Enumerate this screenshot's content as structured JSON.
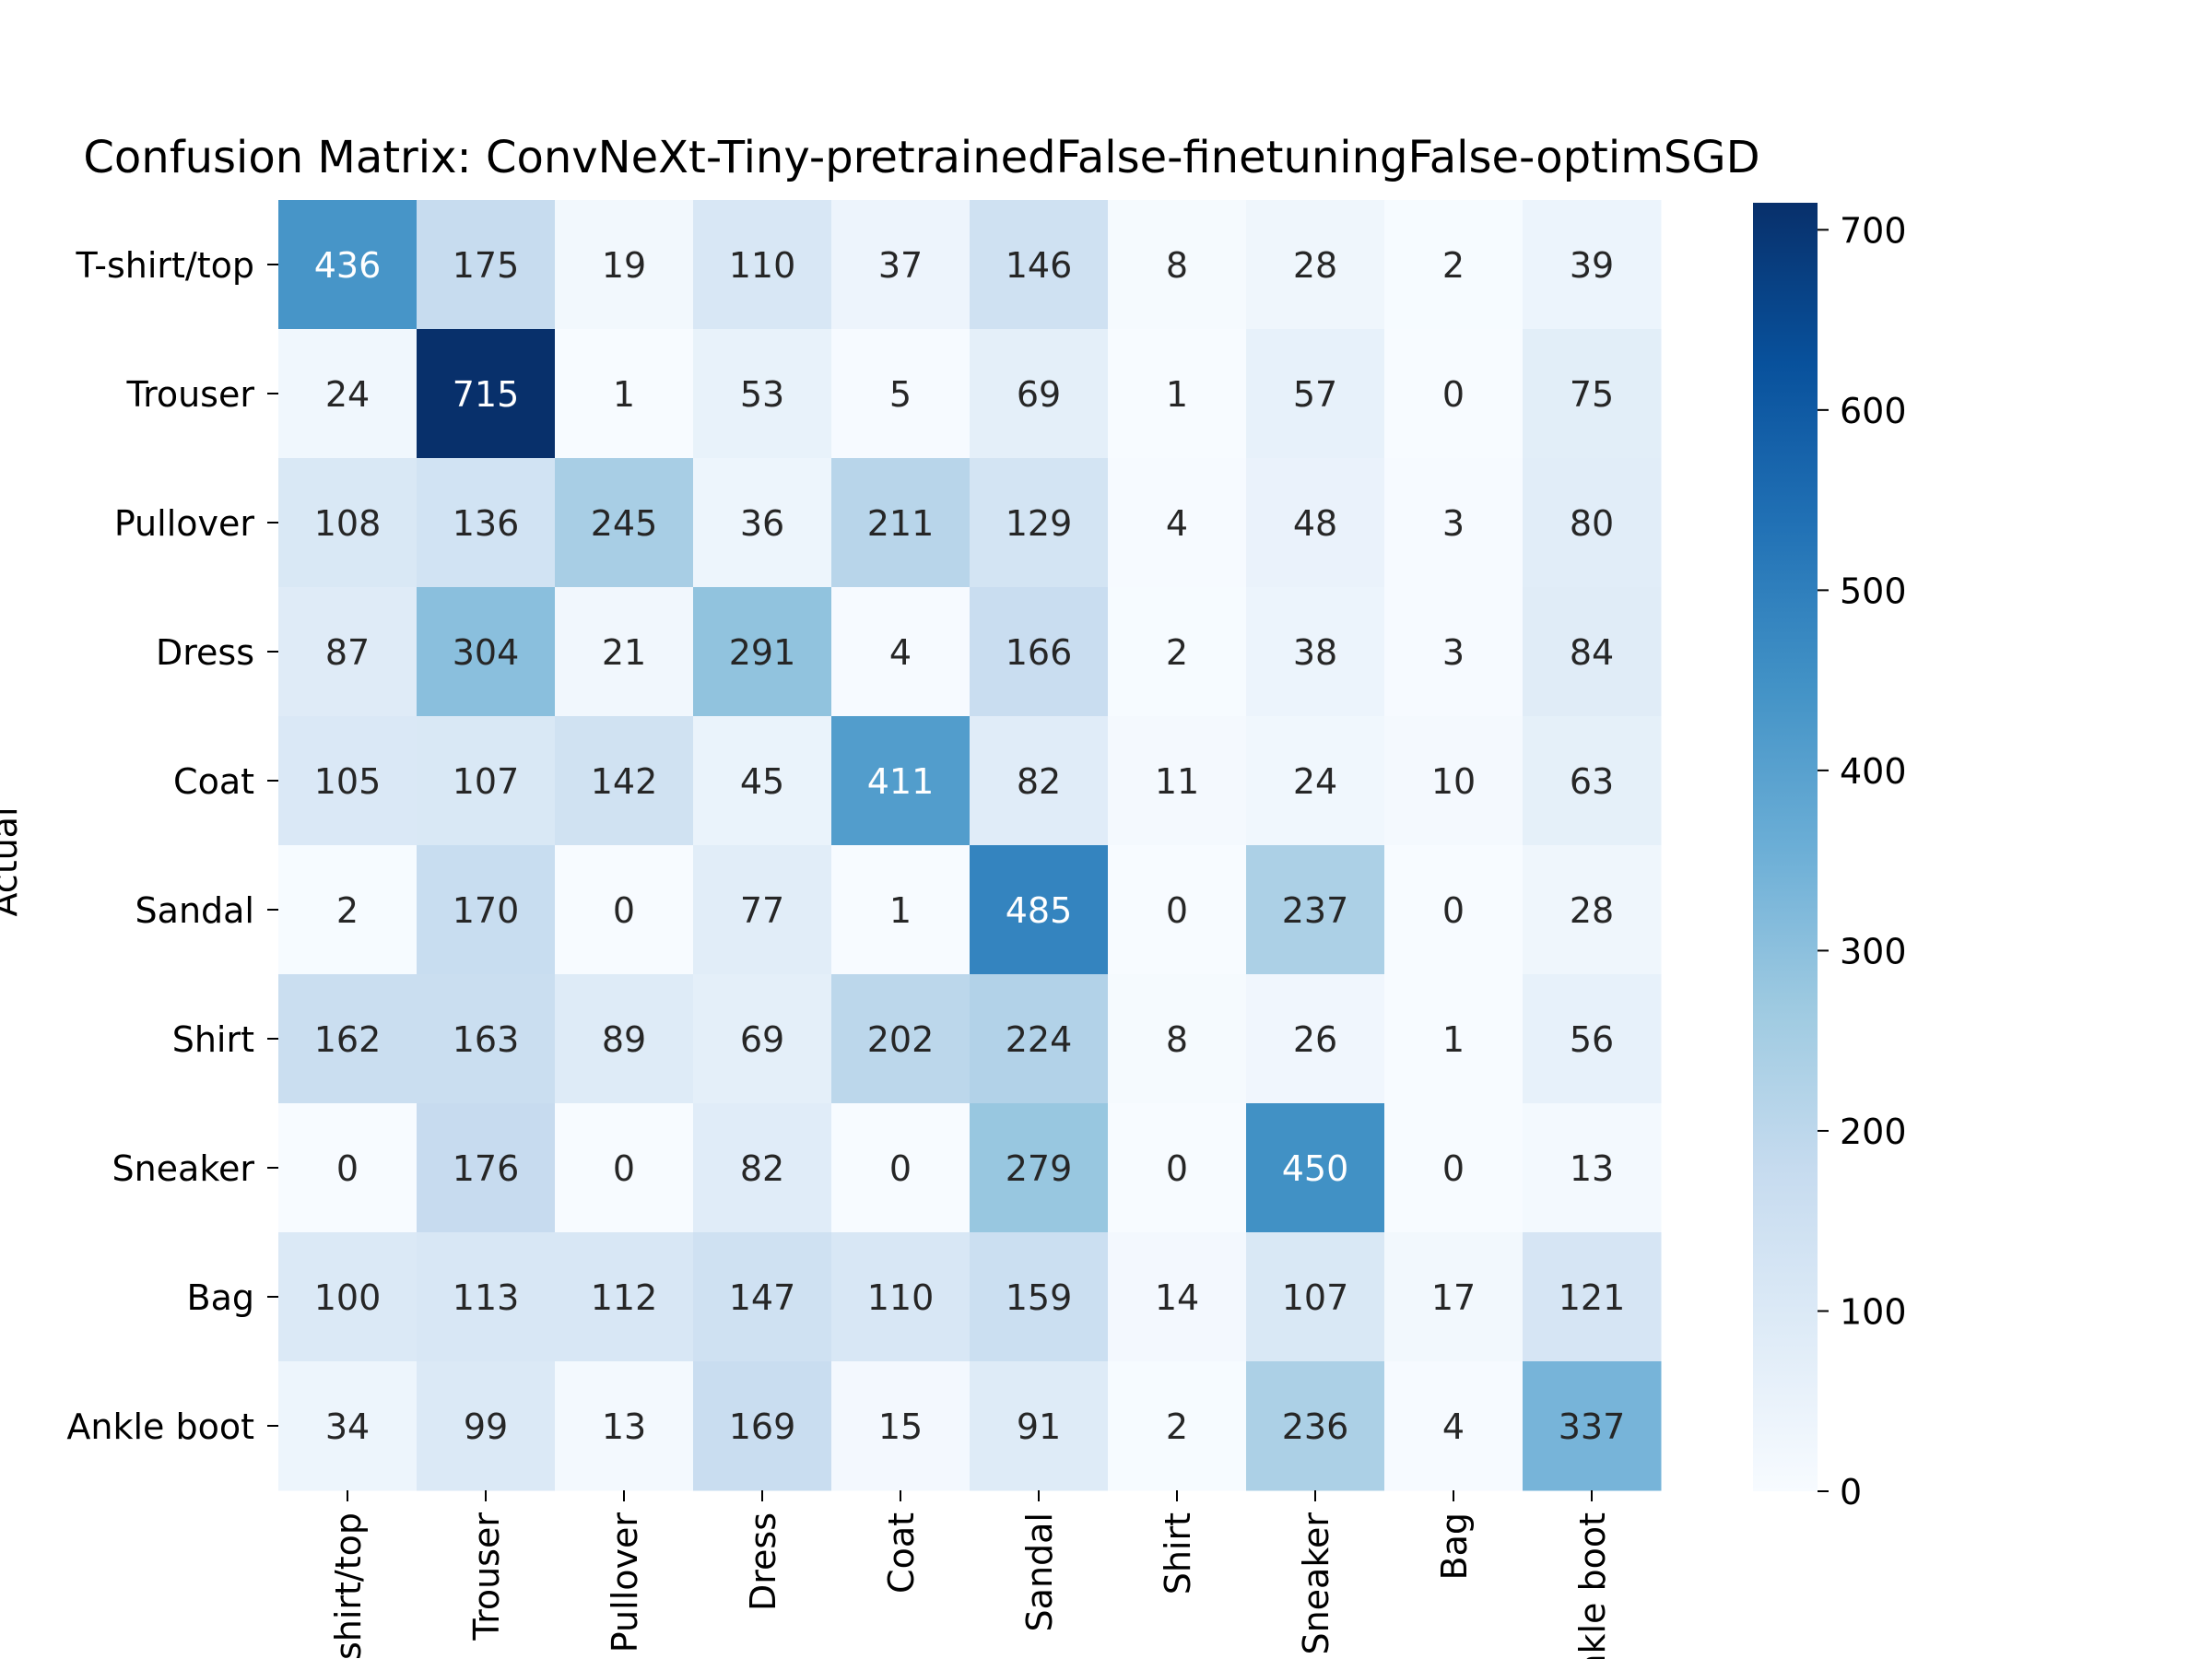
{
  "chart_data": {
    "type": "heatmap",
    "title": "Confusion Matrix: ConvNeXt-Tiny-pretrainedFalse-finetuningFalse-optimSGD",
    "ylabel": "Actual",
    "xlabel": "",
    "rows": [
      "T-shirt/top",
      "Trouser",
      "Pullover",
      "Dress",
      "Coat",
      "Sandal",
      "Shirt",
      "Sneaker",
      "Bag",
      "Ankle boot"
    ],
    "columns": [
      "T-shirt/top",
      "Trouser",
      "Pullover",
      "Dress",
      "Coat",
      "Sandal",
      "Shirt",
      "Sneaker",
      "Bag",
      "Ankle boot"
    ],
    "values": [
      [
        436,
        175,
        19,
        110,
        37,
        146,
        8,
        28,
        2,
        39
      ],
      [
        24,
        715,
        1,
        53,
        5,
        69,
        1,
        57,
        0,
        75
      ],
      [
        108,
        136,
        245,
        36,
        211,
        129,
        4,
        48,
        3,
        80
      ],
      [
        87,
        304,
        21,
        291,
        4,
        166,
        2,
        38,
        3,
        84
      ],
      [
        105,
        107,
        142,
        45,
        411,
        82,
        11,
        24,
        10,
        63
      ],
      [
        2,
        170,
        0,
        77,
        1,
        485,
        0,
        237,
        0,
        28
      ],
      [
        162,
        163,
        89,
        69,
        202,
        224,
        8,
        26,
        1,
        56
      ],
      [
        0,
        176,
        0,
        82,
        0,
        279,
        0,
        450,
        0,
        13
      ],
      [
        100,
        113,
        112,
        147,
        110,
        159,
        14,
        107,
        17,
        121
      ],
      [
        34,
        99,
        13,
        169,
        15,
        91,
        2,
        236,
        4,
        337
      ]
    ],
    "colorbar": {
      "range": [
        0,
        715
      ],
      "ticks": [
        "0",
        "100",
        "200",
        "300",
        "400",
        "500",
        "600",
        "700"
      ],
      "colormap": "Blues",
      "low_color": "#f7fbff",
      "high_color": "#08306b"
    },
    "grid": false,
    "legend": "right"
  }
}
